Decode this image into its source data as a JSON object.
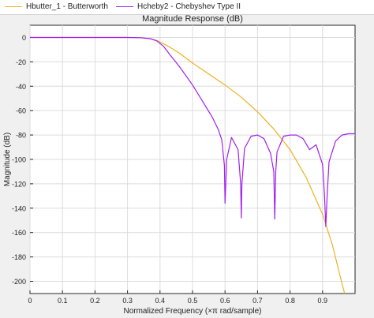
{
  "legend": {
    "items": [
      {
        "label": "Hbutter_1 - Butterworth",
        "color": "#EDB120"
      },
      {
        "label": "Hcheby2 - Chebyshev Type II",
        "color": "#A020F0"
      }
    ]
  },
  "chart_data": {
    "type": "line",
    "title": "Magnitude Response (dB)",
    "xlabel": "Normalized Frequency (×π rad/sample)",
    "ylabel": "Magnitude (dB)",
    "xlim": [
      0,
      1
    ],
    "ylim": [
      -210,
      10
    ],
    "xticks": [
      "0",
      "0.1",
      "0.2",
      "0.3",
      "0.4",
      "0.5",
      "0.6",
      "0.7",
      "0.8",
      "0.9"
    ],
    "yticks": [
      "0",
      "-20",
      "-40",
      "-60",
      "-80",
      "-100",
      "-120",
      "-140",
      "-160",
      "-180",
      "-200"
    ],
    "grid": true,
    "legend_position": "top",
    "series": [
      {
        "name": "Hbutter_1 - Butterworth",
        "color": "#EDB120",
        "x": [
          0,
          0.1,
          0.2,
          0.3,
          0.34,
          0.37,
          0.39,
          0.41,
          0.43,
          0.46,
          0.5,
          0.55,
          0.6,
          0.65,
          0.7,
          0.75,
          0.8,
          0.85,
          0.9,
          0.93,
          0.96,
          0.97
        ],
        "y": [
          0,
          0,
          0,
          0,
          -0.2,
          -1,
          -2.5,
          -5,
          -8,
          -13,
          -21,
          -30,
          -39,
          -49,
          -61,
          -75,
          -92,
          -115,
          -145,
          -170,
          -202,
          -212
        ]
      },
      {
        "name": "Hcheby2 - Chebyshev Type II",
        "color": "#A020F0",
        "x": [
          0,
          0.1,
          0.2,
          0.3,
          0.34,
          0.37,
          0.39,
          0.41,
          0.43,
          0.46,
          0.5,
          0.53,
          0.56,
          0.58,
          0.59,
          0.598,
          0.6,
          0.605,
          0.62,
          0.64,
          0.648,
          0.65,
          0.652,
          0.66,
          0.68,
          0.7,
          0.72,
          0.74,
          0.75,
          0.753,
          0.756,
          0.76,
          0.78,
          0.8,
          0.82,
          0.84,
          0.86,
          0.88,
          0.9,
          0.906,
          0.91,
          0.914,
          0.92,
          0.94,
          0.96,
          0.98,
          1.0
        ],
        "y": [
          0,
          0,
          0,
          0,
          -0.2,
          -1,
          -2.8,
          -7,
          -14,
          -24,
          -39,
          -52,
          -65,
          -76,
          -84,
          -105,
          -136,
          -100,
          -82,
          -92,
          -120,
          -148,
          -120,
          -91,
          -81,
          -80,
          -83,
          -95,
          -110,
          -149,
          -110,
          -94,
          -81,
          -80,
          -80,
          -83,
          -92,
          -88,
          -104,
          -130,
          -155,
          -130,
          -102,
          -85,
          -80,
          -79,
          -79
        ]
      }
    ]
  }
}
